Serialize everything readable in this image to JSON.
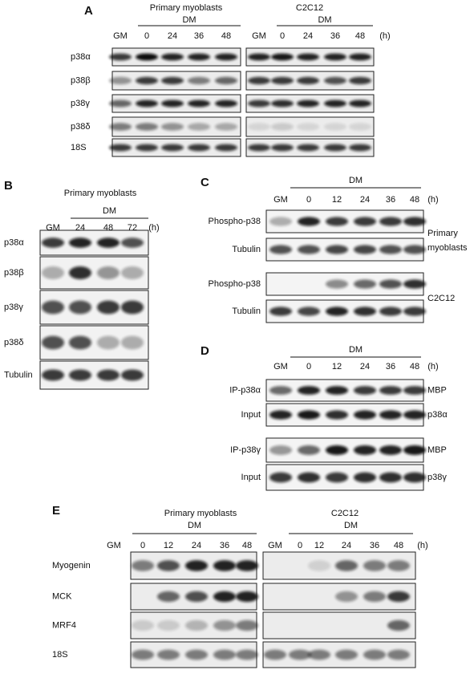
{
  "panels": [
    {
      "label": "A",
      "groups": [
        {
          "title": "Primary myoblasts",
          "condition": "DM",
          "lanes": [
            "GM",
            "0",
            "24",
            "36",
            "48"
          ]
        },
        {
          "title": "C2C12",
          "condition": "DM",
          "lanes": [
            "GM",
            "0",
            "24",
            "36",
            "48"
          ]
        }
      ],
      "unit": "(h)",
      "rows": [
        "p38α",
        "p38β",
        "p38γ",
        "p38δ",
        "18S"
      ]
    },
    {
      "label": "B",
      "groups": [
        {
          "title": "Primary myoblasts",
          "condition": "DM",
          "lanes": [
            "GM",
            "24",
            "48",
            "72"
          ]
        }
      ],
      "unit": "(h)",
      "rows": [
        "p38α",
        "p38β",
        "p38γ",
        "p38δ",
        "Tubulin"
      ]
    },
    {
      "label": "C",
      "groups": [
        {
          "condition": "DM",
          "lanes": [
            "GM",
            "0",
            "12",
            "24",
            "36",
            "48"
          ]
        }
      ],
      "unit": "(h)",
      "rows": [
        "Phospho-p38",
        "Tubulin",
        "Phospho-p38",
        "Tubulin"
      ],
      "side_labels": [
        {
          "lines": [
            "Primary",
            "myoblasts"
          ]
        },
        {
          "lines": [
            "C2C12"
          ]
        }
      ]
    },
    {
      "label": "D",
      "groups": [
        {
          "condition": "DM",
          "lanes": [
            "GM",
            "0",
            "12",
            "24",
            "36",
            "48"
          ]
        }
      ],
      "unit": "(h)",
      "rows": [
        "IP-p38α",
        "Input",
        "IP-p38γ",
        "Input"
      ],
      "right_labels": [
        "MBP",
        "p38α",
        "MBP",
        "p38γ"
      ]
    },
    {
      "label": "E",
      "groups": [
        {
          "title": "Primary myoblasts",
          "condition": "DM",
          "lanes": [
            "GM",
            "0",
            "12",
            "24",
            "36",
            "48"
          ]
        },
        {
          "title": "C2C12",
          "condition": "DM",
          "lanes": [
            "GM",
            "0",
            "12",
            "24",
            "36",
            "48"
          ]
        }
      ],
      "unit": "(h)",
      "rows": [
        "Myogenin",
        "MCK",
        "MRF4",
        "18S"
      ]
    }
  ]
}
